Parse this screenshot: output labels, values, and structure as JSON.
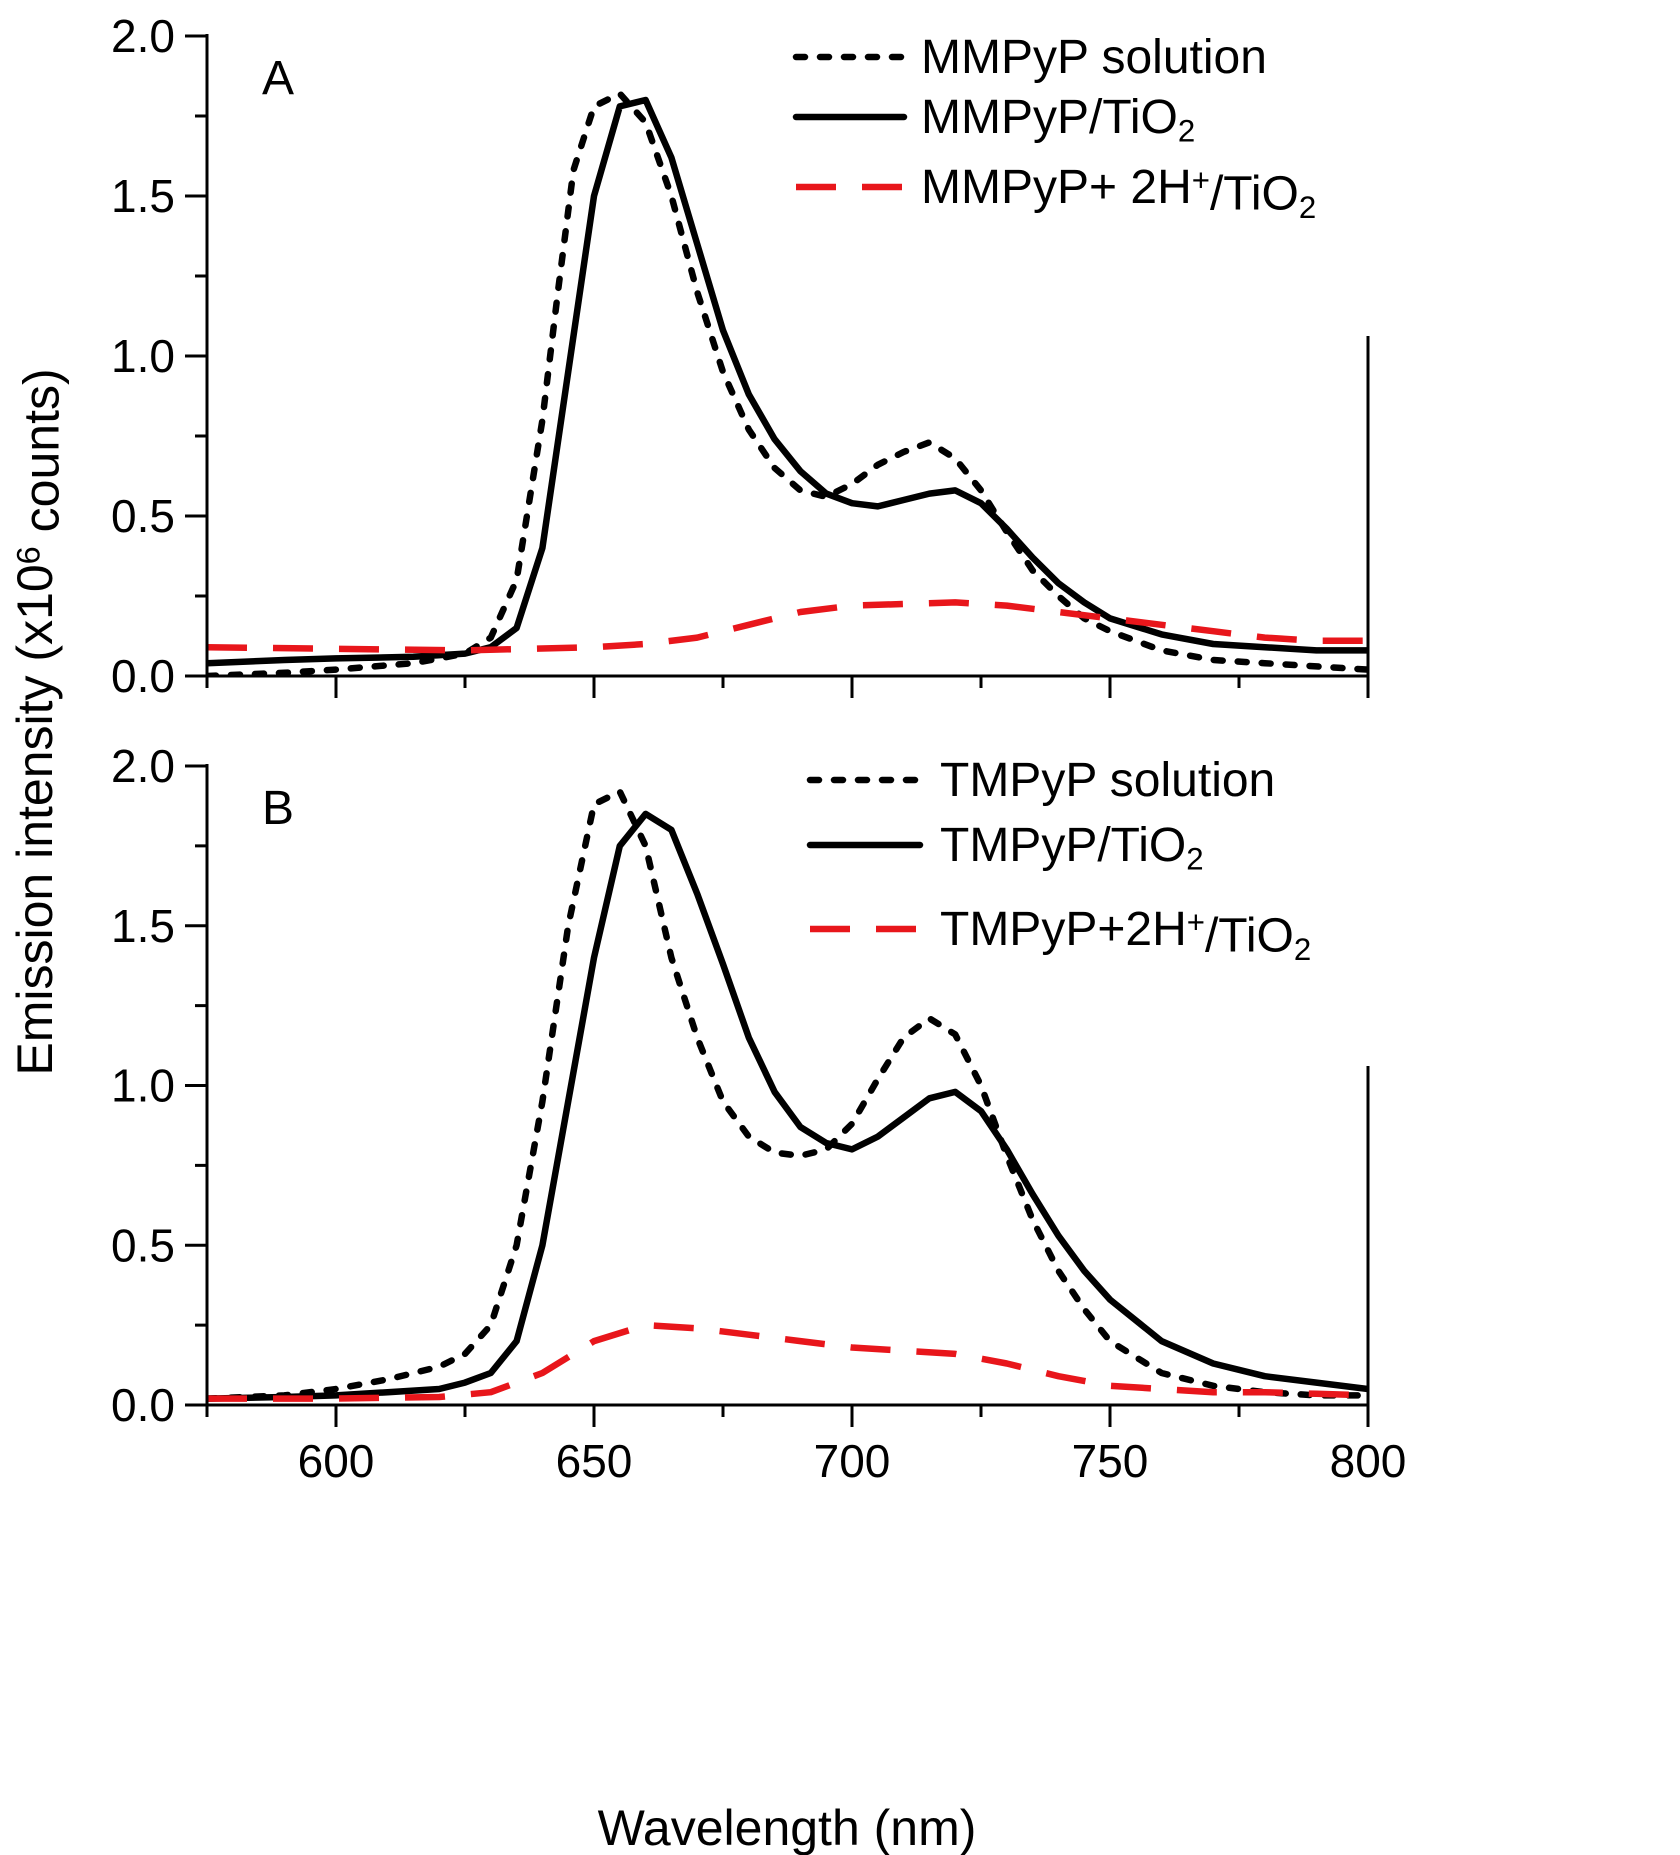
{
  "chart_data": [
    {
      "type": "line",
      "panel_label": "A",
      "xlabel": "Wavelength (nm)",
      "ylabel": "Emission intensity (x10^6 counts)",
      "xlim": [
        575,
        800
      ],
      "ylim": [
        0,
        2.0
      ],
      "x_ticks": [
        600,
        650,
        700,
        750,
        800
      ],
      "y_ticks": [
        0.0,
        0.5,
        1.0,
        1.5,
        2.0
      ],
      "legend_position": "top-right",
      "series": [
        {
          "name": "MMPyP solution",
          "style": "dotted",
          "color": "#000000",
          "x": [
            575,
            590,
            600,
            615,
            625,
            630,
            635,
            640,
            643,
            646,
            650,
            655,
            660,
            665,
            670,
            675,
            680,
            685,
            690,
            695,
            700,
            705,
            710,
            715,
            720,
            725,
            730,
            735,
            740,
            745,
            750,
            760,
            770,
            780,
            790,
            800
          ],
          "y": [
            0.0,
            0.01,
            0.02,
            0.04,
            0.07,
            0.12,
            0.3,
            0.8,
            1.2,
            1.58,
            1.78,
            1.82,
            1.73,
            1.5,
            1.2,
            0.95,
            0.77,
            0.65,
            0.58,
            0.56,
            0.6,
            0.66,
            0.7,
            0.73,
            0.68,
            0.58,
            0.45,
            0.33,
            0.25,
            0.18,
            0.14,
            0.08,
            0.05,
            0.04,
            0.03,
            0.02
          ]
        },
        {
          "name": "MMPyP/TiO2",
          "style": "solid",
          "color": "#000000",
          "x": [
            575,
            590,
            600,
            615,
            625,
            630,
            635,
            640,
            645,
            650,
            655,
            660,
            665,
            670,
            675,
            680,
            685,
            690,
            695,
            700,
            705,
            710,
            715,
            720,
            725,
            730,
            735,
            740,
            745,
            750,
            760,
            770,
            780,
            790,
            800
          ],
          "y": [
            0.04,
            0.05,
            0.055,
            0.06,
            0.07,
            0.09,
            0.15,
            0.4,
            0.95,
            1.5,
            1.78,
            1.8,
            1.62,
            1.35,
            1.08,
            0.88,
            0.74,
            0.64,
            0.57,
            0.54,
            0.53,
            0.55,
            0.57,
            0.58,
            0.54,
            0.46,
            0.37,
            0.29,
            0.23,
            0.18,
            0.13,
            0.1,
            0.09,
            0.08,
            0.08
          ]
        },
        {
          "name": "MMPyP+ 2H+/TiO2",
          "style": "dashed",
          "color": "#e8161b",
          "x": [
            575,
            600,
            625,
            650,
            660,
            670,
            680,
            690,
            700,
            710,
            720,
            730,
            740,
            750,
            760,
            770,
            780,
            790,
            800
          ],
          "y": [
            0.09,
            0.085,
            0.08,
            0.09,
            0.1,
            0.12,
            0.16,
            0.2,
            0.22,
            0.225,
            0.23,
            0.22,
            0.2,
            0.18,
            0.16,
            0.14,
            0.12,
            0.11,
            0.11
          ]
        }
      ]
    },
    {
      "type": "line",
      "panel_label": "B",
      "xlabel": "Wavelength (nm)",
      "ylabel": "Emission intensity (x10^6 counts)",
      "xlim": [
        575,
        800
      ],
      "ylim": [
        0,
        2.0
      ],
      "x_ticks": [
        600,
        650,
        700,
        750,
        800
      ],
      "y_ticks": [
        0.0,
        0.5,
        1.0,
        1.5,
        2.0
      ],
      "legend_position": "top-right",
      "series": [
        {
          "name": "TMPyP solution",
          "style": "dotted",
          "color": "#000000",
          "x": [
            575,
            590,
            600,
            610,
            620,
            625,
            630,
            635,
            640,
            645,
            650,
            655,
            660,
            665,
            670,
            675,
            680,
            685,
            690,
            695,
            700,
            705,
            710,
            715,
            720,
            725,
            730,
            735,
            740,
            745,
            750,
            760,
            770,
            780,
            790,
            800
          ],
          "y": [
            0.02,
            0.03,
            0.05,
            0.08,
            0.12,
            0.16,
            0.25,
            0.5,
            0.95,
            1.5,
            1.88,
            1.92,
            1.75,
            1.4,
            1.15,
            0.95,
            0.84,
            0.79,
            0.78,
            0.8,
            0.88,
            1.02,
            1.15,
            1.21,
            1.16,
            1.0,
            0.78,
            0.58,
            0.42,
            0.3,
            0.2,
            0.1,
            0.06,
            0.04,
            0.03,
            0.03
          ]
        },
        {
          "name": "TMPyP/TiO2",
          "style": "solid",
          "color": "#000000",
          "x": [
            575,
            590,
            600,
            610,
            620,
            625,
            630,
            635,
            640,
            645,
            650,
            655,
            660,
            665,
            670,
            675,
            680,
            685,
            690,
            695,
            700,
            705,
            710,
            715,
            720,
            725,
            730,
            735,
            740,
            745,
            750,
            760,
            770,
            780,
            790,
            800
          ],
          "y": [
            0.02,
            0.025,
            0.03,
            0.04,
            0.05,
            0.07,
            0.1,
            0.2,
            0.5,
            0.95,
            1.4,
            1.75,
            1.85,
            1.8,
            1.6,
            1.38,
            1.15,
            0.98,
            0.87,
            0.82,
            0.8,
            0.84,
            0.9,
            0.96,
            0.98,
            0.92,
            0.8,
            0.66,
            0.53,
            0.42,
            0.33,
            0.2,
            0.13,
            0.09,
            0.07,
            0.05
          ]
        },
        {
          "name": "TMPyP+2H+/TiO2",
          "style": "dashed",
          "color": "#e8161b",
          "x": [
            575,
            600,
            620,
            630,
            640,
            645,
            650,
            660,
            670,
            680,
            690,
            700,
            710,
            720,
            730,
            740,
            750,
            760,
            770,
            780,
            790,
            800
          ],
          "y": [
            0.02,
            0.02,
            0.025,
            0.04,
            0.1,
            0.15,
            0.2,
            0.25,
            0.24,
            0.22,
            0.2,
            0.18,
            0.17,
            0.16,
            0.13,
            0.09,
            0.06,
            0.05,
            0.04,
            0.04,
            0.035,
            0.03
          ]
        }
      ]
    }
  ]
}
